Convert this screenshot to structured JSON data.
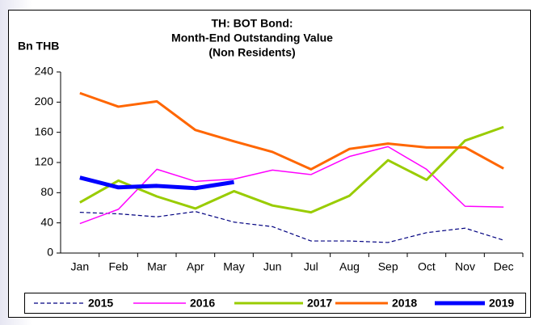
{
  "chart_data": {
    "type": "line",
    "title": [
      "TH: BOT Bond:",
      "Month-End Outstanding Value",
      "(Non Residents)"
    ],
    "y_label": "Bn THB",
    "categories": [
      "Jan",
      "Feb",
      "Mar",
      "Apr",
      "May",
      "Jun",
      "Jul",
      "Aug",
      "Sep",
      "Oct",
      "Nov",
      "Dec"
    ],
    "series": [
      {
        "name": "2015",
        "color": "#000080",
        "values": [
          54,
          52,
          48,
          55,
          41,
          35,
          16,
          16,
          14,
          27,
          33,
          17
        ]
      },
      {
        "name": "2016",
        "color": "#ff00ff",
        "values": [
          39,
          58,
          111,
          95,
          98,
          110,
          104,
          128,
          141,
          111,
          62,
          61
        ]
      },
      {
        "name": "2017",
        "color": "#99cc00",
        "values": [
          67,
          96,
          75,
          59,
          82,
          63,
          54,
          76,
          123,
          97,
          149,
          167
        ]
      },
      {
        "name": "2018",
        "color": "#ff6600",
        "values": [
          212,
          194,
          201,
          163,
          148,
          134,
          111,
          138,
          145,
          140,
          140,
          112
        ]
      },
      {
        "name": "2019",
        "color": "#0000ff",
        "values": [
          100,
          87,
          89,
          86,
          94,
          null,
          null,
          null,
          null,
          null,
          null,
          null
        ]
      }
    ],
    "ylim": [
      0,
      240
    ],
    "yticks": [
      0,
      40,
      80,
      120,
      160,
      200,
      240
    ],
    "grid": false,
    "legend": "bottom"
  }
}
